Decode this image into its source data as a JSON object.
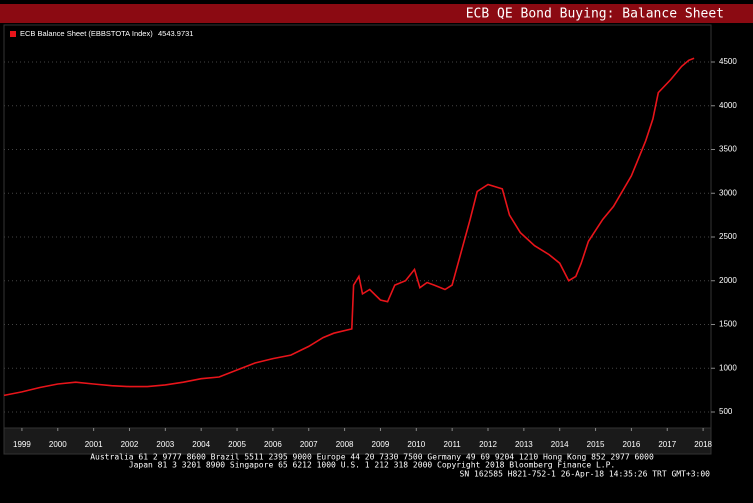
{
  "chart_data": {
    "type": "line",
    "title": "ECB QE Bond Buying: Balance Sheet",
    "series": [
      {
        "name": "ECB Balance Sheet (EBBSTOTA Index)",
        "last_value": 4543.9731,
        "color": "#e8141a",
        "x": [
          1999.0,
          1999.5,
          2000.0,
          2000.5,
          2001.0,
          2001.5,
          2002.0,
          2002.5,
          2003.0,
          2003.5,
          2004.0,
          2004.5,
          2005.0,
          2005.5,
          2006.0,
          2006.5,
          2007.0,
          2007.5,
          2007.9,
          2008.2,
          2008.7,
          2008.75,
          2008.9,
          2009.0,
          2009.2,
          2009.5,
          2009.7,
          2009.9,
          2010.2,
          2010.45,
          2010.6,
          2010.8,
          2011.0,
          2011.3,
          2011.5,
          2011.8,
          2012.0,
          2012.2,
          2012.5,
          2012.9,
          2013.1,
          2013.4,
          2013.8,
          2014.2,
          2014.5,
          2014.75,
          2014.95,
          2015.1,
          2015.3,
          2015.7,
          2016.0,
          2016.5,
          2016.9,
          2017.1,
          2017.25,
          2017.6,
          2017.9,
          2018.1,
          2018.25
        ],
        "values": [
          690,
          730,
          780,
          820,
          840,
          820,
          800,
          790,
          790,
          810,
          840,
          880,
          900,
          980,
          1060,
          1110,
          1150,
          1250,
          1350,
          1400,
          1450,
          1950,
          2050,
          1850,
          1900,
          1780,
          1760,
          1950,
          2000,
          2130,
          1920,
          1980,
          1950,
          1900,
          1950,
          2400,
          2700,
          3020,
          3100,
          3050,
          2750,
          2550,
          2400,
          2300,
          2200,
          2000,
          2050,
          2200,
          2450,
          2700,
          2850,
          3200,
          3600,
          3850,
          4150,
          4300,
          4450,
          4520,
          4544
        ]
      }
    ],
    "xlim": [
      1999.0,
      2018.72
    ],
    "xticks": [
      {
        "value": 1999.5,
        "label": "1999"
      },
      {
        "value": 2000.5,
        "label": "2000"
      },
      {
        "value": 2001.5,
        "label": "2001"
      },
      {
        "value": 2002.5,
        "label": "2002"
      },
      {
        "value": 2003.5,
        "label": "2003"
      },
      {
        "value": 2004.5,
        "label": "2004"
      },
      {
        "value": 2005.5,
        "label": "2005"
      },
      {
        "value": 2006.5,
        "label": "2006"
      },
      {
        "value": 2007.5,
        "label": "2007"
      },
      {
        "value": 2008.5,
        "label": "2008"
      },
      {
        "value": 2009.5,
        "label": "2009"
      },
      {
        "value": 2010.5,
        "label": "2010"
      },
      {
        "value": 2011.5,
        "label": "2011"
      },
      {
        "value": 2012.5,
        "label": "2012"
      },
      {
        "value": 2013.5,
        "label": "2013"
      },
      {
        "value": 2014.5,
        "label": "2014"
      },
      {
        "value": 2015.5,
        "label": "2015"
      },
      {
        "value": 2016.5,
        "label": "2016"
      },
      {
        "value": 2017.5,
        "label": "2017"
      },
      {
        "value": 2018.5,
        "label": "2018"
      }
    ],
    "ylim": [
      317,
      4923
    ],
    "yticks": [
      500,
      1000,
      1500,
      2000,
      2500,
      3000,
      3500,
      4000,
      4500
    ],
    "grid": true,
    "footer": [
      "Australia 61 2 9777 8600 Brazil 5511 2395 9000 Europe 44 20 7330 7500 Germany 49 69 9204 1210 Hong Kong 852 2977 6000",
      "Japan 81 3 3201 8900     Singapore 65 6212 1000     U.S. 1 212 318 2000     Copyright 2018 Bloomberg Finance L.P.",
      "SN 162585 H821-752-1 26-Apr-18 14:35:26 TRT  GMT+3:00"
    ]
  }
}
